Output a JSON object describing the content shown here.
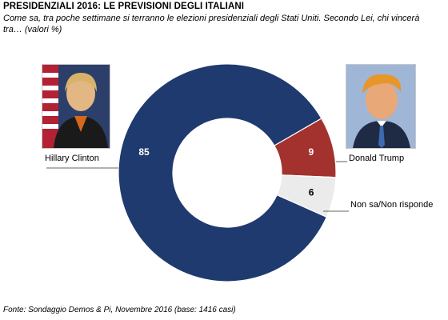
{
  "header": {
    "title": "PRESIDENZIALI 2016: LE PREVISIONI DEGLI ITALIANI",
    "subtitle": "Come sa, tra poche settimane si terranno le elezioni presidenziali degli Stati Uniti. Secondo Lei, chi vincerà tra… (valori %)"
  },
  "footer": {
    "source": "Fonte: Sondaggio Demos & Pi, Novembre 2016 (base: 1416 casi)"
  },
  "colors": {
    "clinton": "#1f3a6e",
    "trump": "#a3322f",
    "unsure": "#ebebeb",
    "value_light": "#ffffff",
    "value_dark": "#000000"
  },
  "chart_data": {
    "type": "pie",
    "donut": true,
    "title": "PRESIDENZIALI 2016: LE PREVISIONI DEGLI ITALIANI",
    "categories": [
      "Hillary Clinton",
      "Donald Trump",
      "Non sa/Non risponde"
    ],
    "values": [
      85,
      9,
      6
    ],
    "unit": "%"
  },
  "labels": {
    "clinton": "Hillary Clinton",
    "trump": "Donald Trump",
    "unsure": "Non sa/Non risponde"
  }
}
